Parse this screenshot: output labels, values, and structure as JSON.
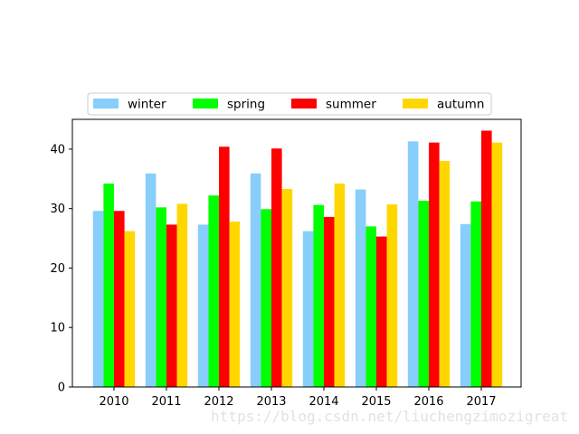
{
  "chart_data": {
    "type": "bar",
    "categories": [
      "2010",
      "2011",
      "2012",
      "2013",
      "2014",
      "2015",
      "2016",
      "2017"
    ],
    "series": [
      {
        "name": "winter",
        "color": "#87CEFA",
        "values": [
          29.6,
          35.9,
          27.3,
          35.9,
          26.2,
          33.2,
          41.3,
          27.4
        ]
      },
      {
        "name": "spring",
        "color": "#00FF00",
        "values": [
          34.2,
          30.2,
          32.2,
          29.9,
          30.6,
          27.0,
          31.3,
          31.2
        ]
      },
      {
        "name": "summer",
        "color": "#FF0000",
        "values": [
          29.6,
          27.3,
          40.4,
          40.1,
          28.6,
          25.3,
          41.1,
          43.1
        ]
      },
      {
        "name": "autumn",
        "color": "#FFD700",
        "values": [
          26.2,
          30.8,
          27.8,
          33.3,
          34.2,
          30.7,
          38.0,
          41.1
        ]
      }
    ],
    "ylim": [
      0,
      45
    ],
    "yticks": [
      0,
      10,
      20,
      30,
      40
    ],
    "legend_position": "top-center",
    "legend_columns": 4,
    "grid": false
  },
  "watermark": "https://blog.csdn.net/liuchengzimozigreat"
}
